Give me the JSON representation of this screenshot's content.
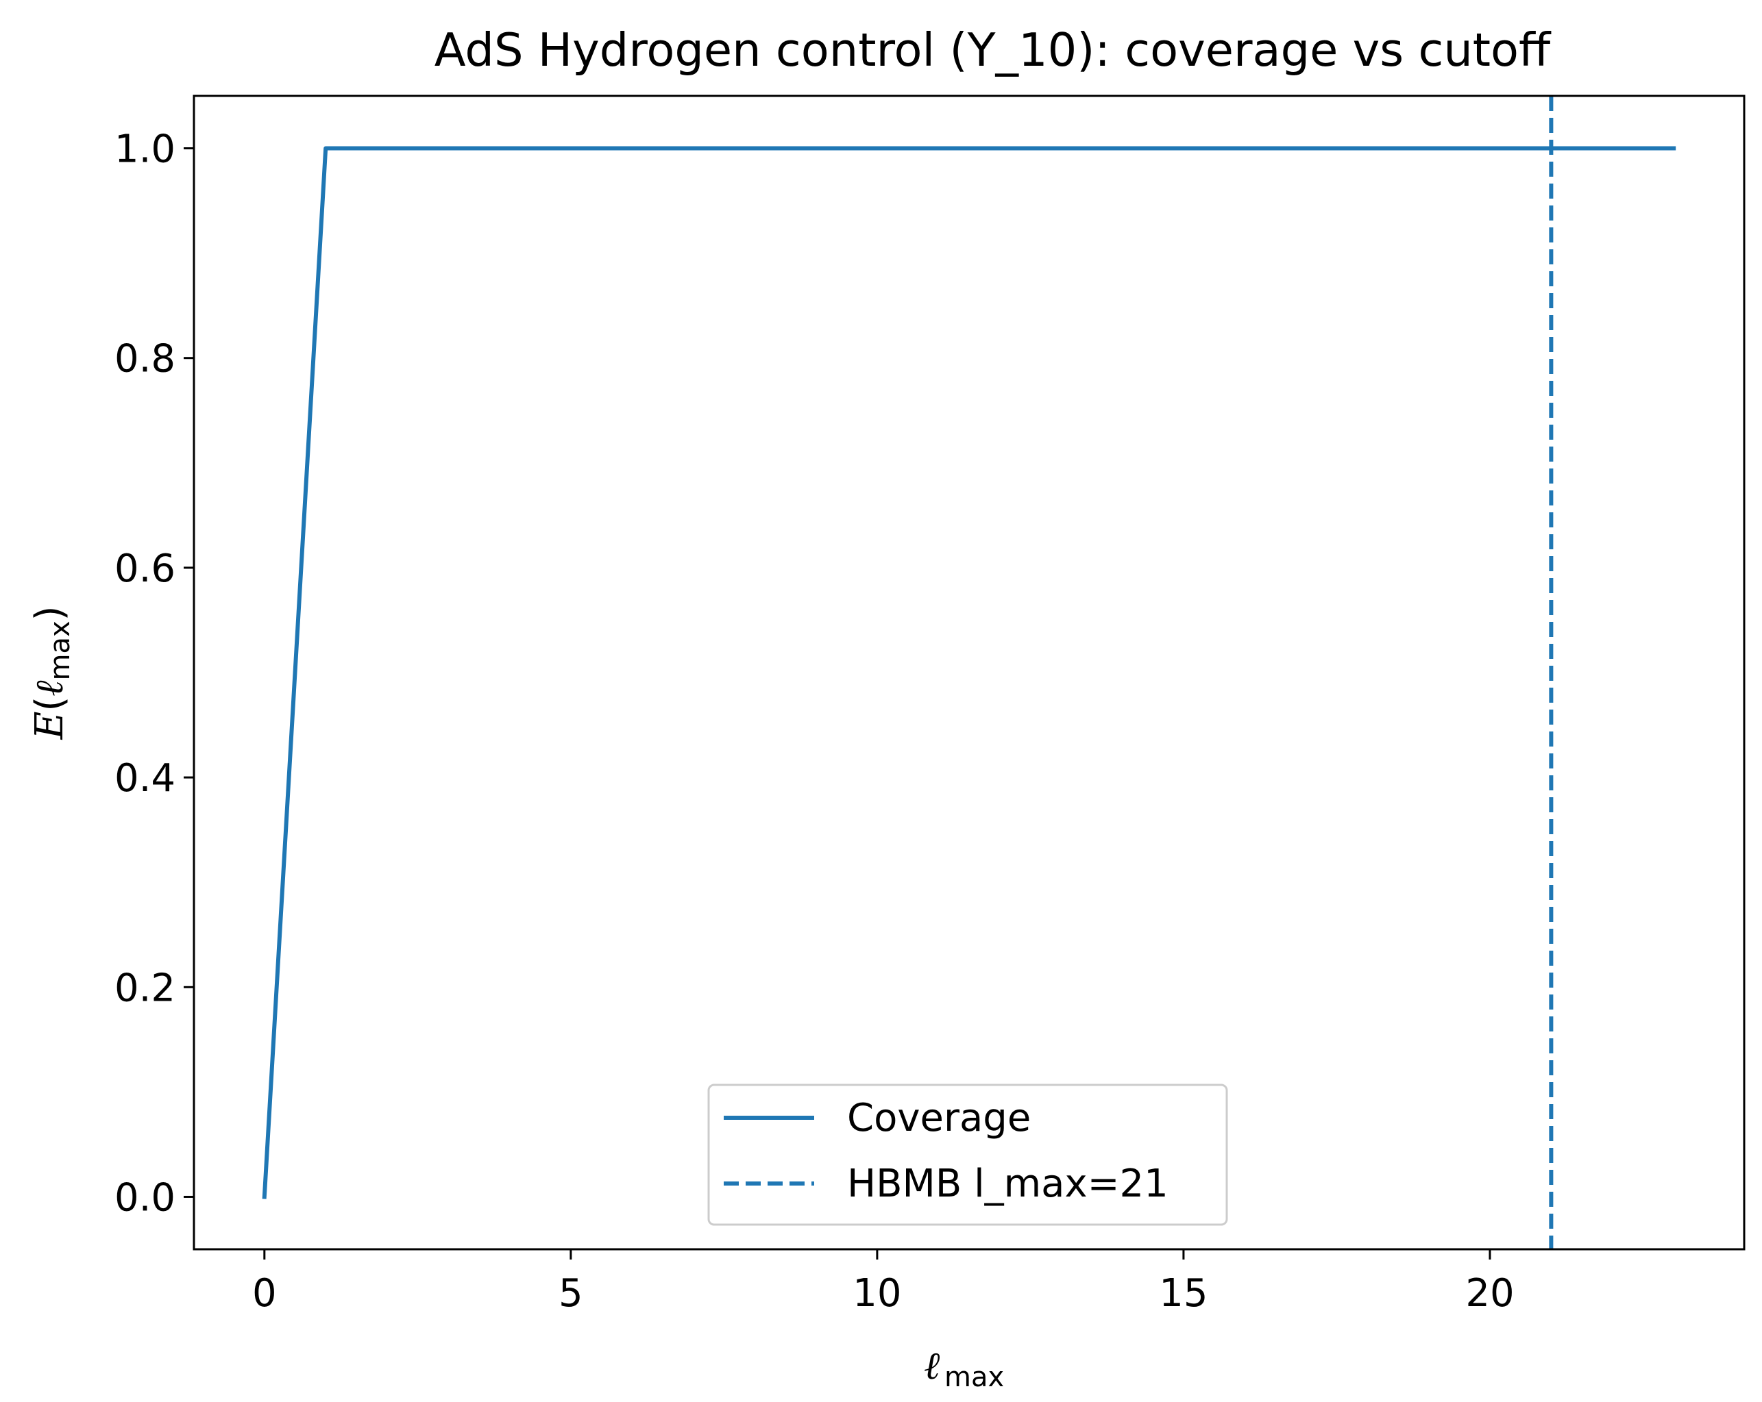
{
  "chart_data": {
    "type": "line",
    "title": "AdS Hydrogen control (Y_10): coverage vs cutoff",
    "xlabel": "ℓmax",
    "ylabel": "E(ℓmax)",
    "xlim": [
      -1.15,
      24.15
    ],
    "ylim": [
      -0.05,
      1.05
    ],
    "x_ticks": [
      0,
      5,
      10,
      15,
      20
    ],
    "y_ticks": [
      0.0,
      0.2,
      0.4,
      0.6,
      0.8,
      1.0
    ],
    "x_tick_labels": [
      "0",
      "5",
      "10",
      "15",
      "20"
    ],
    "y_tick_labels": [
      "0.0",
      "0.2",
      "0.4",
      "0.6",
      "0.8",
      "1.0"
    ],
    "grid": false,
    "legend_placement": "lower-center",
    "series": [
      {
        "name": "Coverage",
        "style": "solid",
        "color": "#1f77b4",
        "x": [
          0,
          1,
          2,
          3,
          4,
          5,
          6,
          7,
          8,
          9,
          10,
          11,
          12,
          13,
          14,
          15,
          16,
          17,
          18,
          19,
          20,
          21,
          22,
          23
        ],
        "y": [
          0.0,
          1.0,
          1.0,
          1.0,
          1.0,
          1.0,
          1.0,
          1.0,
          1.0,
          1.0,
          1.0,
          1.0,
          1.0,
          1.0,
          1.0,
          1.0,
          1.0,
          1.0,
          1.0,
          1.0,
          1.0,
          1.0,
          1.0,
          1.0
        ]
      }
    ],
    "vlines": [
      {
        "name": "HBMB l_max=21",
        "x": 21,
        "style": "dashed",
        "color": "#1f77b4"
      }
    ]
  }
}
